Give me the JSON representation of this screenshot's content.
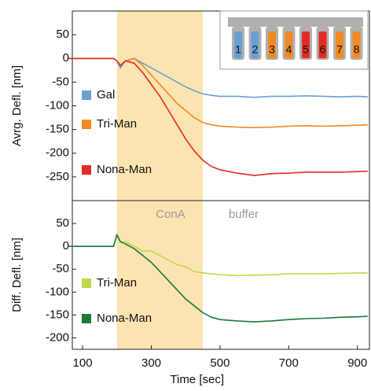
{
  "chart_data": [
    {
      "type": "line",
      "ylabel": "Avrg. Defl. [nm]",
      "x": [
        60,
        100,
        150,
        190,
        200,
        210,
        225,
        250,
        275,
        300,
        325,
        350,
        375,
        400,
        425,
        450,
        475,
        500,
        550,
        600,
        650,
        700,
        750,
        800,
        850,
        900,
        930
      ],
      "series": [
        {
          "name": "Gal",
          "color": "#6a9fd4",
          "values": [
            0,
            0,
            0,
            0,
            -5,
            -20,
            -5,
            0,
            -10,
            -20,
            -30,
            -40,
            -50,
            -60,
            -68,
            -75,
            -78,
            -80,
            -80,
            -82,
            -80,
            -80,
            -79,
            -80,
            -81,
            -80,
            -81
          ]
        },
        {
          "name": "Tri-Man",
          "color": "#f08a24",
          "values": [
            0,
            0,
            0,
            0,
            -5,
            -15,
            -5,
            0,
            -15,
            -35,
            -55,
            -75,
            -95,
            -110,
            -125,
            -135,
            -140,
            -143,
            -145,
            -146,
            -145,
            -143,
            -142,
            -143,
            -142,
            -141,
            -140
          ]
        },
        {
          "name": "Nona-Man",
          "color": "#e42b24",
          "values": [
            0,
            0,
            0,
            0,
            -5,
            -15,
            -5,
            -10,
            -30,
            -55,
            -80,
            -110,
            -140,
            -170,
            -195,
            -215,
            -228,
            -235,
            -242,
            -247,
            -243,
            -242,
            -240,
            -240,
            -240,
            -239,
            -238
          ]
        }
      ],
      "xlim": [
        70,
        935
      ],
      "ylim": [
        -300,
        100
      ],
      "yticks": [
        50,
        0,
        -50,
        -100,
        -150,
        -200,
        -250
      ],
      "highlight": [
        200,
        450
      ],
      "highlight_color": "#fbe4b0",
      "inset": {
        "labels": [
          "1",
          "2",
          "3",
          "4",
          "5",
          "6",
          "7",
          "8"
        ],
        "colors": [
          "#6a9fd4",
          "#6a9fd4",
          "#f08a24",
          "#f08a24",
          "#e42b24",
          "#e42b24",
          "#f08a24",
          "#f08a24"
        ]
      }
    },
    {
      "type": "line",
      "ylabel": "Diff. Defl. [nm]",
      "xlabel": "Time [sec]",
      "x": [
        60,
        100,
        150,
        190,
        200,
        210,
        225,
        250,
        275,
        300,
        325,
        350,
        375,
        400,
        425,
        450,
        475,
        500,
        550,
        600,
        650,
        700,
        750,
        800,
        850,
        900,
        930
      ],
      "series": [
        {
          "name": "Tri-Man",
          "color": "#bcd94a",
          "values": [
            0,
            0,
            0,
            0,
            25,
            10,
            10,
            0,
            -10,
            -10,
            -20,
            -30,
            -40,
            -45,
            -55,
            -58,
            -60,
            -62,
            -64,
            -63,
            -62,
            -60,
            -60,
            -60,
            -59,
            -58,
            -58
          ]
        },
        {
          "name": "Nona-Man",
          "color": "#1a7a3a",
          "values": [
            0,
            0,
            0,
            0,
            25,
            10,
            5,
            -5,
            -20,
            -35,
            -55,
            -75,
            -95,
            -115,
            -130,
            -145,
            -155,
            -160,
            -163,
            -165,
            -163,
            -160,
            -158,
            -157,
            -155,
            -154,
            -153
          ]
        }
      ],
      "xlim": [
        70,
        935
      ],
      "ylim": [
        -225,
        100
      ],
      "xticks": [
        100,
        300,
        500,
        700,
        900
      ],
      "yticks": [
        50,
        0,
        -50,
        -100,
        -150,
        -200
      ],
      "highlight": [
        200,
        450
      ],
      "highlight_color": "#fbe4b0",
      "annotations": [
        "ConA",
        "buffer"
      ]
    }
  ]
}
